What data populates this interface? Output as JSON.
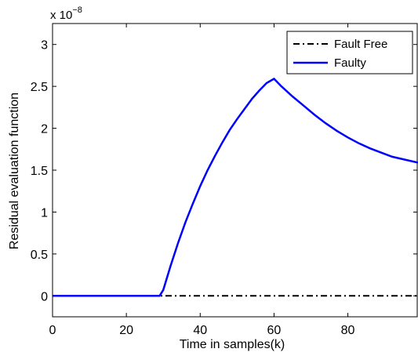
{
  "chart_data": {
    "type": "line",
    "title": "",
    "xlabel": "Time in samples(k)",
    "ylabel": "Residual evaluation function",
    "xlim": [
      0,
      99
    ],
    "ylim": [
      -0.25,
      3.25
    ],
    "y_multiplier": {
      "base": "x 10",
      "exponent": "−8"
    },
    "xticks": [
      0,
      20,
      40,
      60,
      80
    ],
    "xtick_labels": [
      "0",
      "20",
      "40",
      "60",
      "80"
    ],
    "yticks": [
      0,
      0.5,
      1,
      1.5,
      2,
      2.5,
      3
    ],
    "ytick_labels": [
      "0",
      "0.5",
      "1",
      "1.5",
      "2",
      "2.5",
      "3"
    ],
    "grid": false,
    "legend_position": "top-right",
    "series": [
      {
        "name": "Fault Free",
        "color": "#000000",
        "style": "dash-dot",
        "x": [
          0,
          99
        ],
        "y": [
          0,
          0
        ]
      },
      {
        "name": "Faulty",
        "color": "#0000ff",
        "style": "solid",
        "x": [
          0,
          29,
          30,
          32,
          34,
          36,
          38,
          40,
          42,
          44,
          46,
          48,
          50,
          52,
          54,
          56,
          58,
          60,
          62,
          65,
          68,
          71,
          74,
          77,
          80,
          83,
          86,
          89,
          92,
          95,
          99
        ],
        "y": [
          0,
          0,
          0.07,
          0.36,
          0.63,
          0.88,
          1.1,
          1.31,
          1.5,
          1.67,
          1.83,
          1.98,
          2.11,
          2.23,
          2.35,
          2.45,
          2.54,
          2.59,
          2.5,
          2.38,
          2.27,
          2.16,
          2.06,
          1.97,
          1.89,
          1.82,
          1.76,
          1.71,
          1.66,
          1.63,
          1.59
        ]
      }
    ]
  }
}
